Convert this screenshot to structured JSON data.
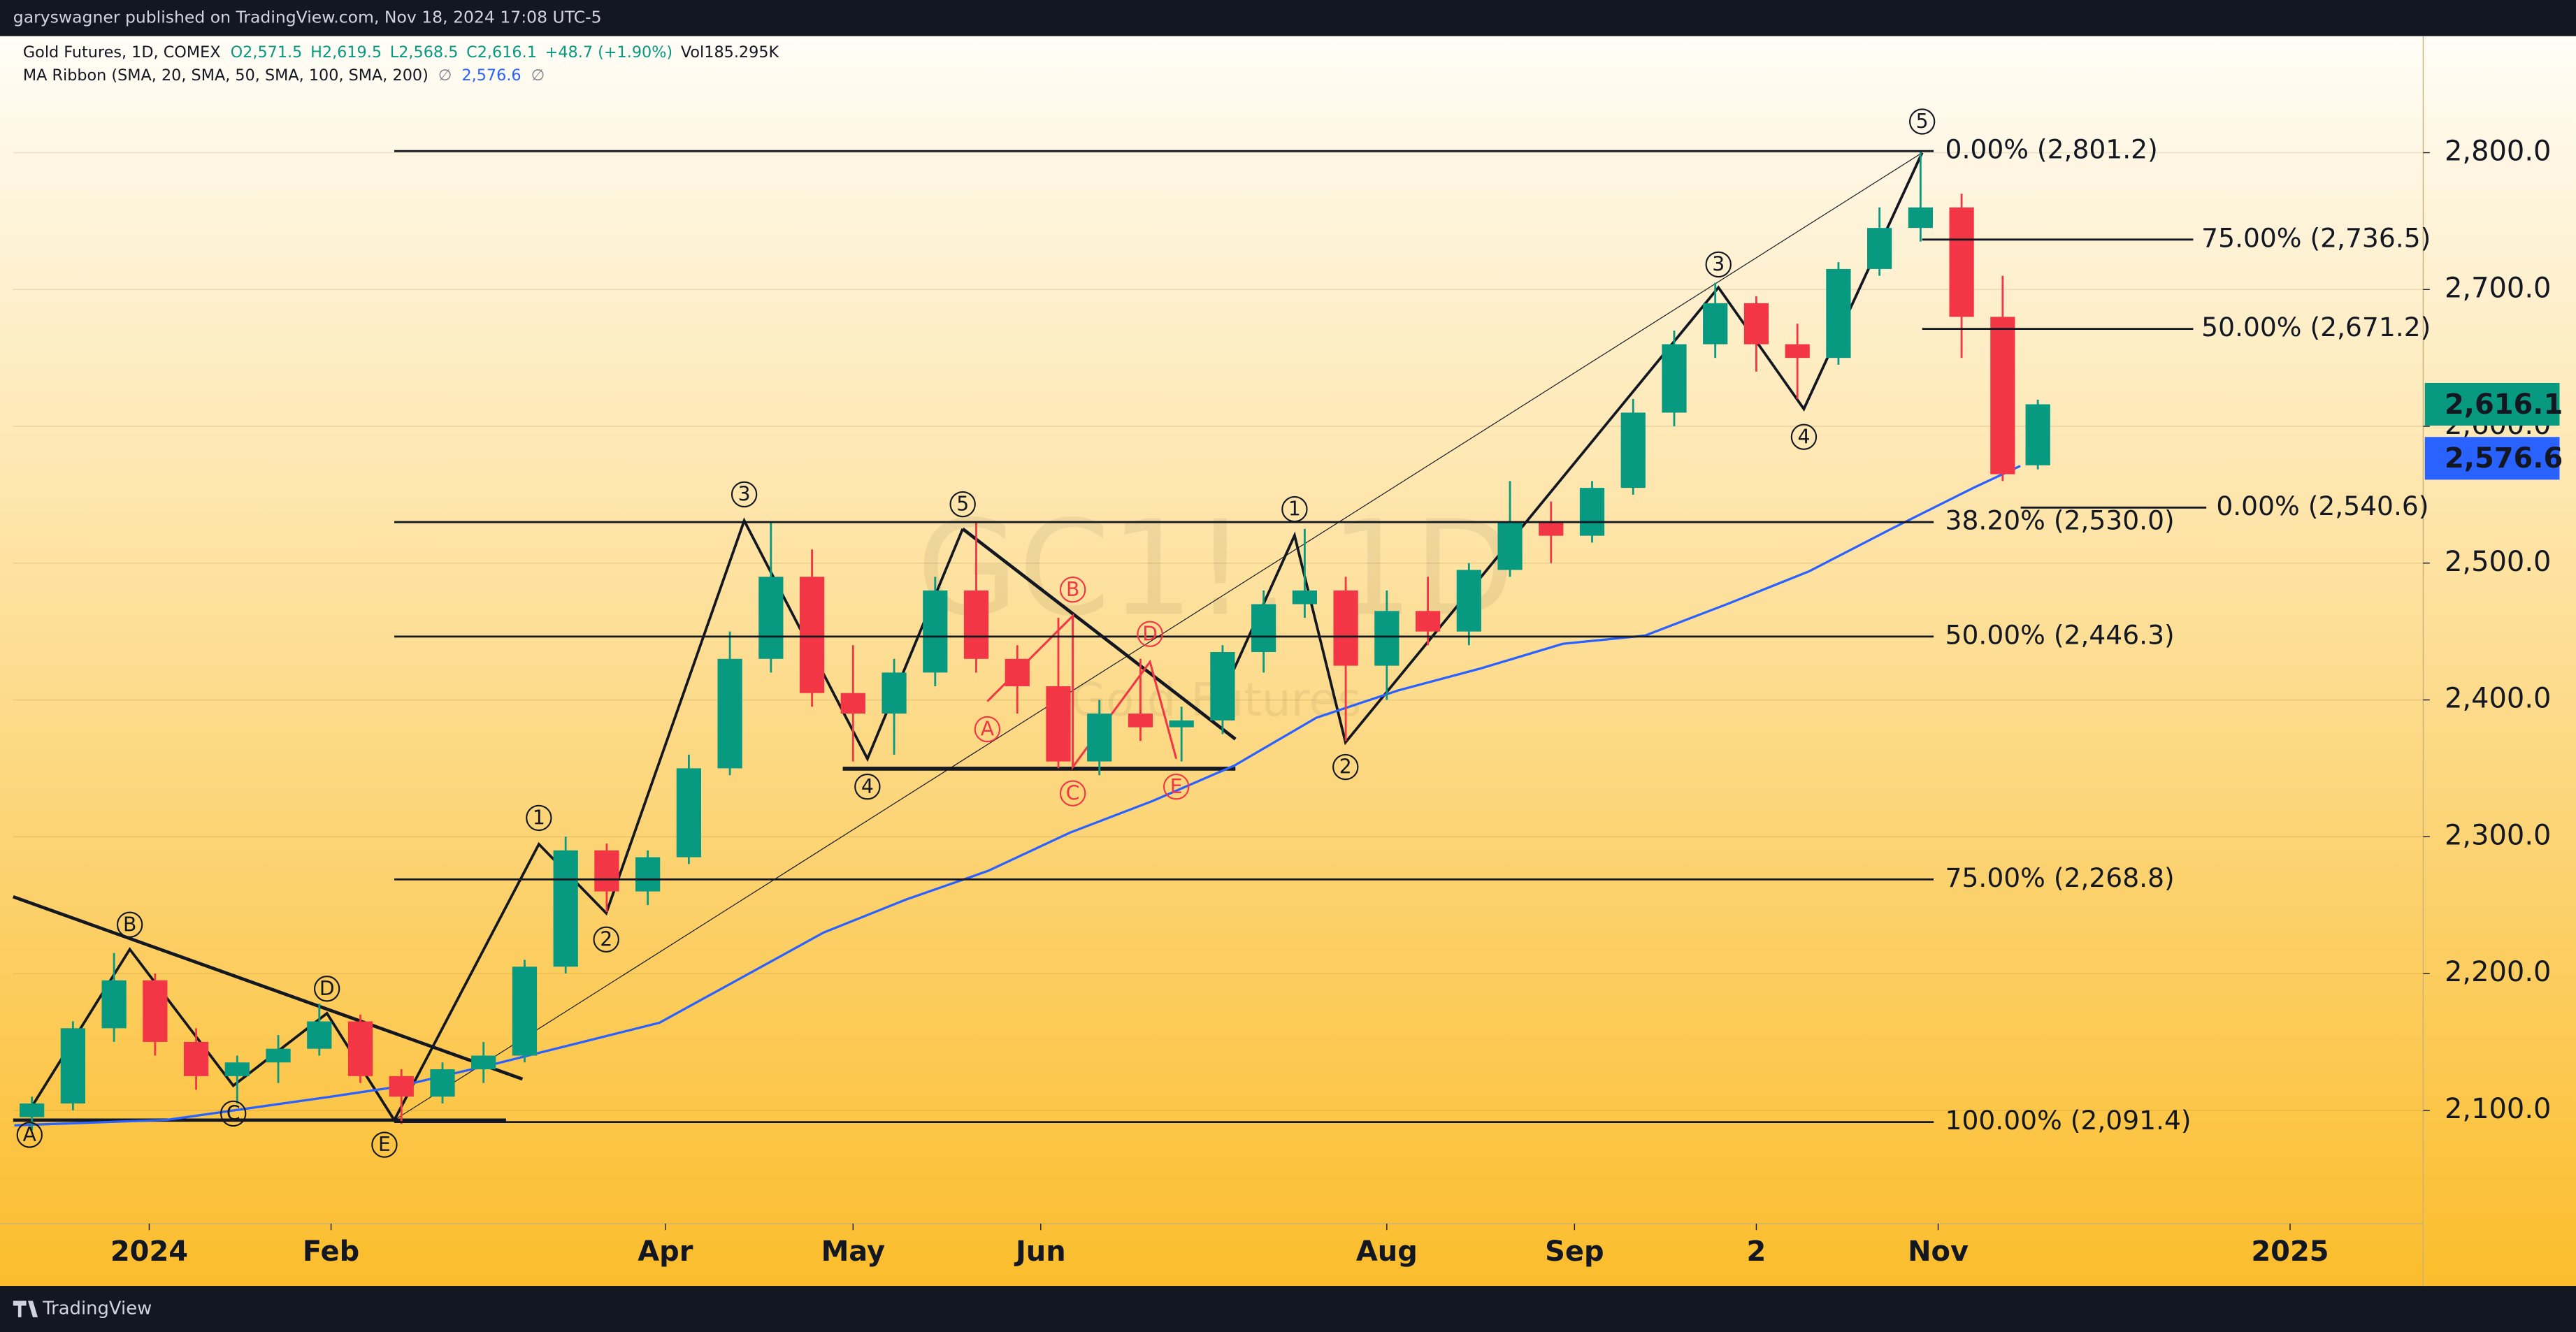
{
  "header": {
    "publisher": "garyswagner published on TradingView.com, Nov 18, 2024 17:08 UTC-5",
    "footer": "TradingView"
  },
  "chart_data": {
    "type": "candlestick",
    "watermark": "GC1!, 1D",
    "watermark_sub": "Gold Futures",
    "legend": {
      "symbol": "Gold Futures, 1D, COMEX",
      "ohlc": [
        "O2,571.5",
        "H2,619.5",
        "L2,568.5",
        "C2,616.1",
        "+48.7 (+1.90%)"
      ],
      "volume": "Vol185.295K",
      "ma": [
        "MA Ribbon (SMA, 20, SMA, 50, SMA, 100, SMA, 200)",
        "∅",
        "2,576.6",
        "∅"
      ]
    },
    "x": [
      -20,
      -13,
      -6,
      1,
      8,
      15,
      22,
      29,
      36,
      43,
      50,
      57,
      64,
      71,
      78,
      85,
      92,
      99,
      106,
      113,
      120,
      127,
      134,
      141,
      148,
      155,
      162,
      169,
      176,
      183,
      190,
      197,
      204,
      211,
      218,
      225,
      232,
      239,
      246,
      253,
      260,
      267,
      274,
      281,
      288,
      295,
      302,
      309,
      316,
      322
    ],
    "open": [
      2095,
      2105,
      2160,
      2195,
      2150,
      2125,
      2135,
      2145,
      2165,
      2125,
      2110,
      2130,
      2140,
      2205,
      2290,
      2260,
      2285,
      2350,
      2430,
      2490,
      2405,
      2390,
      2420,
      2480,
      2430,
      2410,
      2355,
      2390,
      2380,
      2385,
      2435,
      2470,
      2480,
      2425,
      2465,
      2450,
      2495,
      2530,
      2520,
      2555,
      2610,
      2660,
      2690,
      2660,
      2650,
      2715,
      2745,
      2760,
      2680,
      2571.5
    ],
    "high": [
      2110,
      2165,
      2215,
      2200,
      2160,
      2140,
      2155,
      2178,
      2170,
      2130,
      2135,
      2150,
      2210,
      2300,
      2295,
      2290,
      2360,
      2450,
      2530,
      2510,
      2440,
      2430,
      2490,
      2530,
      2440,
      2460,
      2400,
      2430,
      2395,
      2440,
      2480,
      2525,
      2490,
      2480,
      2490,
      2500,
      2560,
      2545,
      2560,
      2620,
      2670,
      2705,
      2695,
      2675,
      2720,
      2760,
      2801,
      2770,
      2710,
      2619.5
    ],
    "low": [
      2085,
      2100,
      2150,
      2140,
      2115,
      2105,
      2120,
      2140,
      2120,
      2090,
      2105,
      2120,
      2135,
      2200,
      2245,
      2250,
      2280,
      2345,
      2420,
      2395,
      2355,
      2360,
      2410,
      2420,
      2390,
      2350,
      2345,
      2370,
      2355,
      2375,
      2420,
      2460,
      2370,
      2400,
      2440,
      2440,
      2490,
      2500,
      2515,
      2550,
      2600,
      2650,
      2640,
      2620,
      2645,
      2710,
      2735,
      2650,
      2560,
      2568.5
    ],
    "close": [
      2105,
      2160,
      2195,
      2150,
      2125,
      2135,
      2145,
      2165,
      2125,
      2110,
      2130,
      2140,
      2205,
      2290,
      2260,
      2285,
      2350,
      2430,
      2490,
      2405,
      2390,
      2420,
      2480,
      2430,
      2410,
      2355,
      2390,
      2380,
      2385,
      2435,
      2470,
      2480,
      2425,
      2465,
      2450,
      2495,
      2530,
      2520,
      2555,
      2610,
      2660,
      2690,
      2660,
      2650,
      2715,
      2745,
      2760,
      2680,
      2565,
      2616.1
    ],
    "up_color": "#089981",
    "down_color": "#f23645",
    "ma_line": {
      "color": "#2962ff",
      "x": [
        -23,
        3,
        31,
        42,
        59,
        73,
        87,
        101,
        115,
        129,
        143,
        157,
        171,
        185,
        199,
        213,
        227,
        241,
        255,
        269,
        283,
        297,
        311,
        319
      ],
      "values": [
        2089,
        2093,
        2110,
        2117,
        2134,
        2149,
        2164,
        2197,
        2230,
        2254,
        2275,
        2303,
        2326,
        2352,
        2387,
        2407,
        2423,
        2441,
        2447,
        2470,
        2494,
        2525,
        2555,
        2571
      ]
    },
    "xlim": [
      -23.2,
      387.7
    ],
    "ylim": [
      2017.2,
      2885.2
    ],
    "xticks": [
      {
        "value": 0,
        "label": "2024"
      },
      {
        "value": 31,
        "label": "Feb"
      },
      {
        "value": 88,
        "label": "Apr"
      },
      {
        "value": 120,
        "label": "May"
      },
      {
        "value": 152,
        "label": "Jun"
      },
      {
        "value": 211,
        "label": "Aug"
      },
      {
        "value": 243,
        "label": "Sep"
      },
      {
        "value": 274,
        "label": "2"
      },
      {
        "value": 305,
        "label": "Nov"
      },
      {
        "value": 365,
        "label": "2025"
      }
    ],
    "yticks": [
      {
        "value": 2100,
        "label": "2,100.0"
      },
      {
        "value": 2200,
        "label": "2,200.0"
      },
      {
        "value": 2300,
        "label": "2,300.0"
      },
      {
        "value": 2400,
        "label": "2,400.0"
      },
      {
        "value": 2500,
        "label": "2,500.0"
      },
      {
        "value": 2600,
        "label": "2,600.0"
      },
      {
        "value": 2700,
        "label": "2,700.0"
      },
      {
        "value": 2800,
        "label": "2,800.0"
      }
    ],
    "grid": true,
    "fib_levels": [
      {
        "label": "0.00% (2,801.2)",
        "price": 2801.2
      },
      {
        "label": "38.20% (2,530.0)",
        "price": 2530.0
      },
      {
        "label": "50.00% (2,446.3)",
        "price": 2446.3
      },
      {
        "label": "75.00% (2,268.8)",
        "price": 2268.8
      },
      {
        "label": "100.00% (2,091.4)",
        "price": 2091.4
      },
      {
        "label": "75.00% (2,736.5)",
        "price": 2736.5
      },
      {
        "label": "50.00% (2,671.2)",
        "price": 2671.2
      },
      {
        "label": "0.00% (2,540.6)",
        "price": 2540.6
      }
    ],
    "price_tags": [
      {
        "value": 2616.1,
        "label": "2,616.1",
        "color": "#089981"
      },
      {
        "value": 2576.6,
        "label": "2,576.6",
        "color": "#2962ff"
      }
    ],
    "wave_labels": [
      {
        "color": "#131722",
        "labels": [
          "A",
          "B",
          "C",
          "D",
          "E",
          "1",
          "2",
          "3",
          "4",
          "5",
          "1",
          "2",
          "3",
          "4",
          "5"
        ]
      },
      {
        "color": "#f23645",
        "labels": [
          "A",
          "B",
          "C",
          "D",
          "E"
        ]
      }
    ]
  }
}
